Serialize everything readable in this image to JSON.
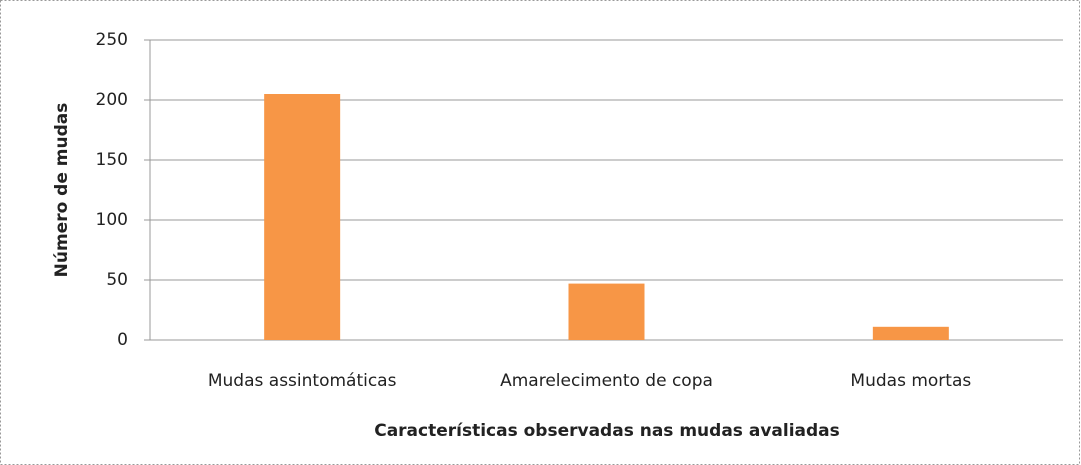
{
  "chart_data": {
    "type": "bar",
    "categories": [
      "Mudas assintomáticas",
      "Amarelecimento de copa",
      "Mudas mortas"
    ],
    "values": [
      205,
      47,
      11
    ],
    "color": "#f79646",
    "ylabel": "Número de mudas",
    "xlabel": "Características observadas nas mudas avaliadas",
    "ylim": [
      0,
      250
    ],
    "yticks": [
      0,
      50,
      100,
      150,
      200,
      250
    ],
    "grid": true
  }
}
